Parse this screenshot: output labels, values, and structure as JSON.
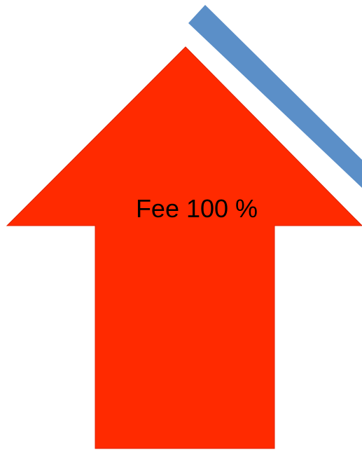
{
  "arrow": {
    "label": "Fee 100 %"
  }
}
